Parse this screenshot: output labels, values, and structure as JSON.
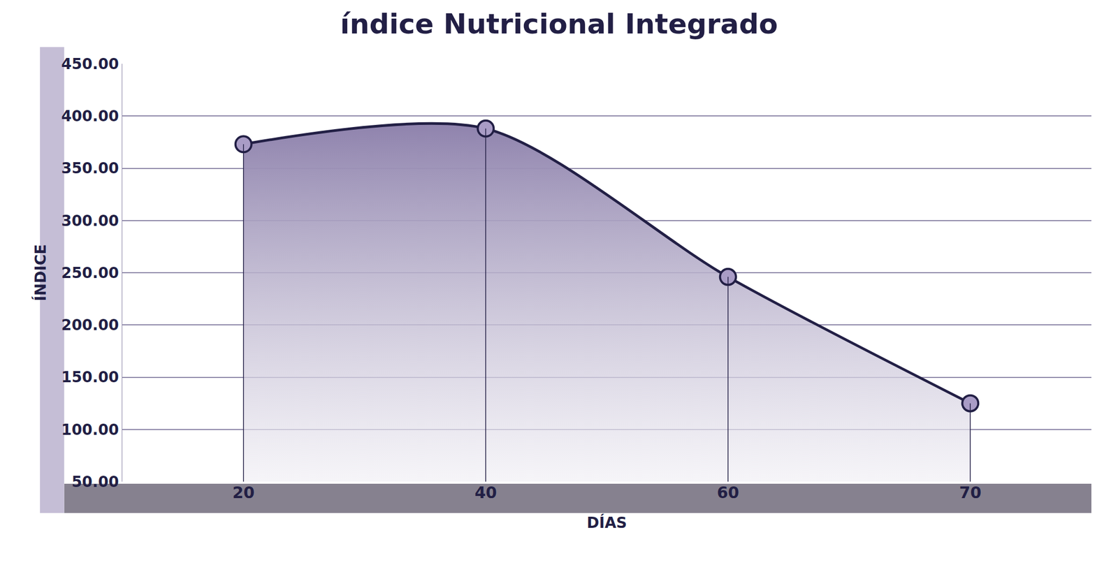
{
  "chart_data": {
    "type": "area",
    "title": "índice Nutricional Integrado",
    "x_label": "DÍAS",
    "y_label": "ÍNDICE",
    "categories": [
      "20",
      "40",
      "60",
      "70"
    ],
    "values": [
      373,
      388,
      246,
      125
    ],
    "color": "#8f83ad",
    "ylim": [
      50,
      450
    ],
    "yticks": [
      {
        "value": 50,
        "label": "50.00"
      },
      {
        "value": 100,
        "label": "100.00"
      },
      {
        "value": 150,
        "label": "150.00"
      },
      {
        "value": 200,
        "label": "200.00"
      },
      {
        "value": 250,
        "label": "250.00"
      },
      {
        "value": 300,
        "label": "300.00"
      },
      {
        "value": 350,
        "label": "350.00"
      },
      {
        "value": 400,
        "label": "400.00"
      },
      {
        "value": 450,
        "label": "450.00"
      }
    ],
    "grid": true,
    "marker": "circle"
  }
}
